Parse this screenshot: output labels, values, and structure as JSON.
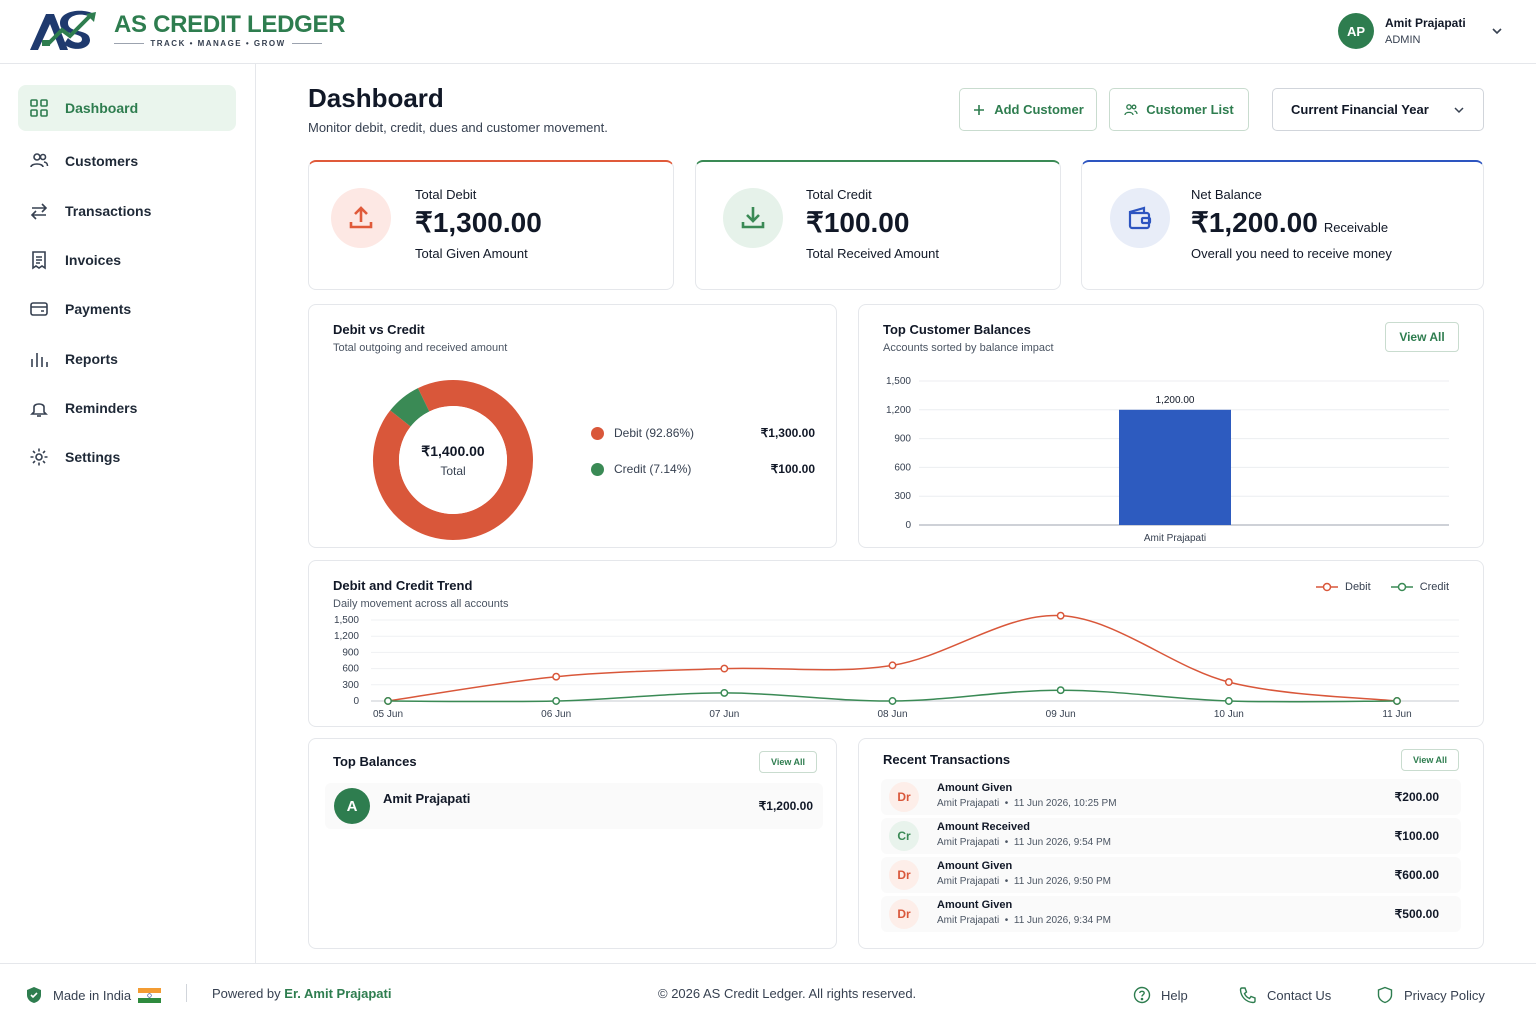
{
  "brand": {
    "title": "AS CREDIT LEDGER",
    "tagline": "TRACK • MANAGE • GROW",
    "primary_color": "#2e7d4f"
  },
  "user": {
    "initials": "AP",
    "name": "Amit Prajapati",
    "role": "ADMIN"
  },
  "sidebar": {
    "items": [
      {
        "label": "Dashboard",
        "icon": "grid-icon",
        "active": true
      },
      {
        "label": "Customers",
        "icon": "users-icon"
      },
      {
        "label": "Transactions",
        "icon": "arrows-icon"
      },
      {
        "label": "Invoices",
        "icon": "invoice-icon"
      },
      {
        "label": "Payments",
        "icon": "card-icon"
      },
      {
        "label": "Reports",
        "icon": "bar-chart-icon"
      },
      {
        "label": "Reminders",
        "icon": "bell-icon"
      },
      {
        "label": "Settings",
        "icon": "gear-icon"
      }
    ]
  },
  "header": {
    "title": "Dashboard",
    "subtitle": "Monitor debit, credit, dues and customer movement.",
    "add_customer": "Add Customer",
    "customer_list": "Customer List",
    "period": "Current Financial Year"
  },
  "stats": [
    {
      "label": "Total Debit",
      "value": "₹1,300.00",
      "suffix": "",
      "sub": "Total Given Amount",
      "color": "#e05a3a"
    },
    {
      "label": "Total Credit",
      "value": "₹100.00",
      "suffix": "",
      "sub": "Total Received Amount",
      "color": "#3a8a55"
    },
    {
      "label": "Net Balance",
      "value": "₹1,200.00",
      "suffix": "Receivable",
      "sub": "Overall you need to receive money",
      "color": "#2d55c0"
    }
  ],
  "donut": {
    "title": "Debit vs Credit",
    "subtitle": "Total outgoing and received amount",
    "center_value": "₹1,400.00",
    "center_label": "Total",
    "legend": [
      {
        "label": "Debit (92.86%)",
        "amount": "₹1,300.00",
        "color": "#d9573a"
      },
      {
        "label": "Credit (7.14%)",
        "amount": "₹100.00",
        "color": "#3a8a55"
      }
    ]
  },
  "top_customers": {
    "title": "Top Customer Balances",
    "subtitle": "Accounts sorted by balance impact",
    "view_all": "View All"
  },
  "trend": {
    "title": "Debit and Credit Trend",
    "subtitle": "Daily movement across all accounts",
    "legend_debit": "Debit",
    "legend_credit": "Credit"
  },
  "top_balances": {
    "title": "Top Balances",
    "view_all": "View All",
    "items": [
      {
        "initial": "A",
        "name": "Amit Prajapati",
        "amount": "₹1,200.00"
      }
    ]
  },
  "recent": {
    "title": "Recent Transactions",
    "view_all": "View All",
    "items": [
      {
        "badge": "Dr",
        "title": "Amount Given",
        "customer": "Amit Prajapati",
        "date": "11 Jun 2026, 10:25 PM",
        "amount": "₹200.00"
      },
      {
        "badge": "Cr",
        "title": "Amount Received",
        "customer": "Amit Prajapati",
        "date": "11 Jun 2026, 9:54 PM",
        "amount": "₹100.00"
      },
      {
        "badge": "Dr",
        "title": "Amount Given",
        "customer": "Amit Prajapati",
        "date": "11 Jun 2026, 9:50 PM",
        "amount": "₹600.00"
      },
      {
        "badge": "Dr",
        "title": "Amount Given",
        "customer": "Amit Prajapati",
        "date": "11 Jun 2026, 9:34 PM",
        "amount": "₹500.00"
      }
    ]
  },
  "footer": {
    "made_in": "Made in India",
    "powered_by": "Powered by ",
    "powered_name": "Er. Amit Prajapati",
    "copyright": "© 2026 AS Credit Ledger. All rights reserved.",
    "help": "Help",
    "contact": "Contact Us",
    "privacy": "Privacy Policy"
  },
  "chart_data": [
    {
      "type": "pie",
      "title": "Debit vs Credit",
      "categories": [
        "Debit (92.86%)",
        "Credit (7.14%)"
      ],
      "values": [
        1300,
        100
      ],
      "colors": [
        "#d9573a",
        "#3a8a55"
      ]
    },
    {
      "type": "bar",
      "title": "Top Customer Balances",
      "categories": [
        "Amit Prajapati"
      ],
      "values": [
        1200
      ],
      "data_labels": [
        "1,200.00"
      ],
      "ylim": [
        0,
        1500
      ],
      "yticks": [
        "0",
        "300",
        "600",
        "900",
        "1,200",
        "1,500"
      ],
      "color": "#2d5bbf"
    },
    {
      "type": "line",
      "title": "Debit and Credit Trend",
      "x": [
        "05 Jun",
        "06 Jun",
        "07 Jun",
        "08 Jun",
        "09 Jun",
        "10 Jun",
        "11 Jun"
      ],
      "series": [
        {
          "name": "Debit",
          "values": [
            0,
            450,
            600,
            660,
            1580,
            350,
            0
          ],
          "color": "#d9573a"
        },
        {
          "name": "Credit",
          "values": [
            0,
            0,
            150,
            0,
            200,
            0,
            0
          ],
          "color": "#3a8a55"
        }
      ],
      "ylim": [
        0,
        1500
      ],
      "yticks": [
        "0",
        "300",
        "600",
        "900",
        "1,200",
        "1,500"
      ]
    }
  ]
}
